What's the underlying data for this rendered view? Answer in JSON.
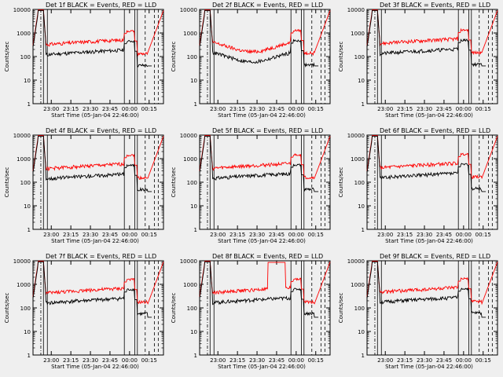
{
  "ylabel": "Counts/sec",
  "y_ticks": [
    "1",
    "10",
    "100",
    "1000",
    "10000"
  ],
  "xlabel_prefix": "Start Time (05-Jan-04 22:46:00)",
  "series_colors": {
    "events": "#000000",
    "lld": "#ff0000"
  },
  "panels": [
    {
      "title": "Det 1f BLACK = Events, RED = LLD",
      "xticks": [
        "23:00",
        "23:15",
        "23:30",
        "23:45",
        "00:00",
        "00:15"
      ],
      "variant": 0
    },
    {
      "title": "Det 2f BLACK = Events, RED = LLD",
      "xticks": [
        "23:00",
        "23:15",
        "23:30",
        "23:45",
        "00:00",
        "00:15"
      ],
      "variant": 1
    },
    {
      "title": "Det 3f BLACK = Events, RED = LLD",
      "xticks": [
        "23:00",
        "23:15",
        "23:30",
        "23:45",
        "00:00",
        "00:15"
      ],
      "variant": 2
    },
    {
      "title": "Det 4f BLACK = Events, RED = LLD",
      "xticks": [
        "23:00",
        "23:15",
        "23:30",
        "23:45",
        "00:00",
        "00:15"
      ],
      "variant": 3
    },
    {
      "title": "Det 5f BLACK = Events, RED = LLD",
      "xticks": [
        "23:00",
        "23:15",
        "23:30",
        "23:45",
        "00:00",
        "00:15"
      ],
      "variant": 4
    },
    {
      "title": "Det 6f BLACK = Events, RED = LLD",
      "xticks": [
        "23:00",
        "23:15",
        "23:30",
        "23:45",
        "00:00",
        "00:15"
      ],
      "variant": 5
    },
    {
      "title": "Det 7f BLACK = Events, RED = LLD",
      "xticks": [
        "23:00",
        "23:15",
        "23:30",
        "23:45",
        "00:00",
        "00:15"
      ],
      "variant": 6
    },
    {
      "title": "Det 8f BLACK = Events, RED = LLD",
      "xticks": [
        "23:00",
        "23:15",
        "23:30",
        "23:45",
        "00:00",
        "00:15"
      ],
      "variant": 7
    },
    {
      "title": "Det 9f BLACK = Events, RED = LLD",
      "xticks": [
        "23:00",
        "23:15",
        "23:30",
        "23:45",
        "00:00",
        "00:15"
      ],
      "variant": 8
    }
  ],
  "chart_data": {
    "type": "line",
    "y_scale": "log",
    "ylim": [
      1,
      10000
    ],
    "xlim": [
      "22:46",
      "00:26"
    ],
    "xlabel": "Start Time (05-Jan-04 22:46:00)",
    "ylabel": "Counts/sec",
    "legend": "in title: BLACK = Events, RED = LLD",
    "series": [
      {
        "name": "Events",
        "color": "#000000",
        "profile_x": [
          "22:46",
          "22:50",
          "22:54",
          "22:56",
          "23:00",
          "23:20",
          "23:40",
          "23:50",
          "23:56",
          "23:58",
          "00:04",
          "00:14",
          "00:18",
          "00:20",
          "00:26"
        ],
        "values": [
          200,
          6000,
          8000,
          150,
          150,
          140,
          200,
          300,
          250,
          0,
          0,
          40,
          0,
          0,
          0
        ]
      },
      {
        "name": "LLD",
        "color": "#ff0000",
        "profile_x": [
          "22:46",
          "22:50",
          "22:54",
          "22:56",
          "23:00",
          "23:20",
          "23:40",
          "23:50",
          "23:56",
          "23:58",
          "00:04",
          "00:14",
          "00:18",
          "00:20",
          "00:26"
        ],
        "values": [
          250,
          7000,
          9000,
          300,
          400,
          350,
          500,
          600,
          1000,
          600,
          150,
          120,
          150,
          1200,
          9000
        ]
      }
    ]
  }
}
